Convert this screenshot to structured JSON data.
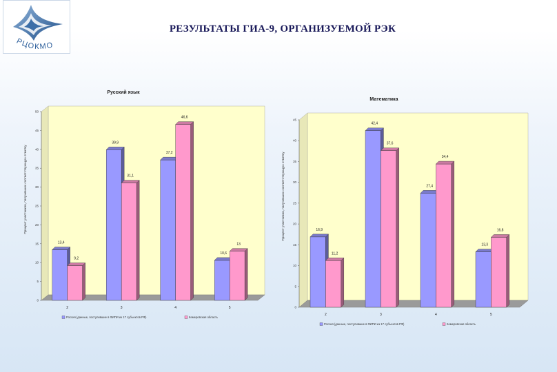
{
  "header": {
    "title": "РЕЗУЛЬТАТЫ ГИА-9, ОРГАНИЗУЕМОЙ РЭК",
    "logo_text": "РЦОКМО"
  },
  "colors": {
    "series1": "#9999ff",
    "series2": "#ff99cc",
    "plot_bg": "#ffffcc",
    "floor": "#9a9a9a",
    "wall": "#c0c0c0"
  },
  "chart_data": [
    {
      "type": "bar",
      "title": "Русский язык",
      "ylabel": "Процент участников, получивших соответствующую отметку",
      "ylim": [
        0,
        50
      ],
      "yticks": [
        "0",
        "5",
        "10",
        "15",
        "20",
        "25",
        "30",
        "35",
        "40",
        "45",
        "50"
      ],
      "categories": [
        "2",
        "3",
        "4",
        "5"
      ],
      "series": [
        {
          "name": "Россия (данные, поступившие в ФИПИ из 17 субъектов РФ)",
          "values": [
            13.4,
            39.9,
            37.2,
            10.6
          ],
          "labels": [
            "13,4",
            "39,9",
            "37,2",
            "10,6"
          ]
        },
        {
          "name": "Кемеровская область",
          "values": [
            9.2,
            31.1,
            46.6,
            13.0
          ],
          "labels": [
            "9,2",
            "31,1",
            "46,6",
            "13"
          ]
        }
      ],
      "grid": false,
      "legend": "bottom"
    },
    {
      "type": "bar",
      "title": "Математика",
      "ylabel": "Процент участников, получивших соответствующую отметку",
      "ylim": [
        0,
        45
      ],
      "yticks": [
        "0",
        "5",
        "10",
        "15",
        "20",
        "25",
        "30",
        "35",
        "40",
        "45"
      ],
      "categories": [
        "2",
        "3",
        "4",
        "5"
      ],
      "series": [
        {
          "name": "Россия (данные, поступившие в ФИПИ из 17 субъектов РФ)",
          "values": [
            16.9,
            42.4,
            27.4,
            13.3
          ],
          "labels": [
            "16,9",
            "42,4",
            "27,4",
            "13,3"
          ]
        },
        {
          "name": "Кемеровская область",
          "values": [
            11.2,
            37.6,
            34.4,
            16.8
          ],
          "labels": [
            "11,2",
            "37,6",
            "34,4",
            "16,8"
          ]
        }
      ],
      "grid": false,
      "legend": "bottom"
    }
  ]
}
